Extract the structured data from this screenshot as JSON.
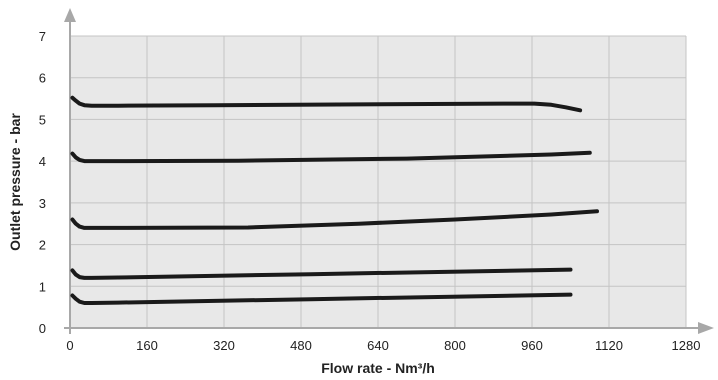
{
  "chart_data": {
    "type": "line",
    "title": "",
    "xlabel": "Flow rate - Nm³/h",
    "ylabel": "Outlet pressure - bar",
    "xlim": [
      0,
      1280
    ],
    "ylim": [
      0,
      7
    ],
    "x_ticks": [
      "0",
      "160",
      "320",
      "480",
      "640",
      "800",
      "960",
      "1120",
      "1280"
    ],
    "y_ticks": [
      "0",
      "1",
      "2",
      "3",
      "4",
      "5",
      "6",
      "7"
    ],
    "grid": true,
    "legend": "none",
    "colors": {
      "plot_bg": "#e8e8e8",
      "grid": "#c4c4c4",
      "line": "#1a1a1a",
      "axis": "#a8a8a8"
    },
    "series": [
      {
        "x": [
          5,
          12,
          20,
          30,
          45,
          100,
          300,
          600,
          900,
          965,
          1000,
          1030,
          1060
        ],
        "values": [
          5.52,
          5.45,
          5.38,
          5.34,
          5.33,
          5.33,
          5.34,
          5.36,
          5.38,
          5.38,
          5.35,
          5.29,
          5.22
        ]
      },
      {
        "x": [
          5,
          12,
          20,
          30,
          45,
          100,
          350,
          700,
          1000,
          1080
        ],
        "values": [
          4.18,
          4.09,
          4.03,
          4.0,
          4.0,
          4.0,
          4.01,
          4.06,
          4.16,
          4.2
        ]
      },
      {
        "x": [
          5,
          12,
          20,
          30,
          45,
          100,
          370,
          600,
          800,
          1000,
          1095
        ],
        "values": [
          2.6,
          2.5,
          2.43,
          2.4,
          2.4,
          2.4,
          2.41,
          2.5,
          2.6,
          2.72,
          2.8
        ]
      },
      {
        "x": [
          5,
          12,
          20,
          30,
          45,
          100,
          500,
          1040
        ],
        "values": [
          1.38,
          1.28,
          1.22,
          1.2,
          1.2,
          1.21,
          1.29,
          1.4
        ]
      },
      {
        "x": [
          5,
          12,
          20,
          30,
          45,
          100,
          500,
          1040
        ],
        "values": [
          0.78,
          0.7,
          0.63,
          0.6,
          0.6,
          0.61,
          0.69,
          0.8
        ]
      }
    ]
  }
}
